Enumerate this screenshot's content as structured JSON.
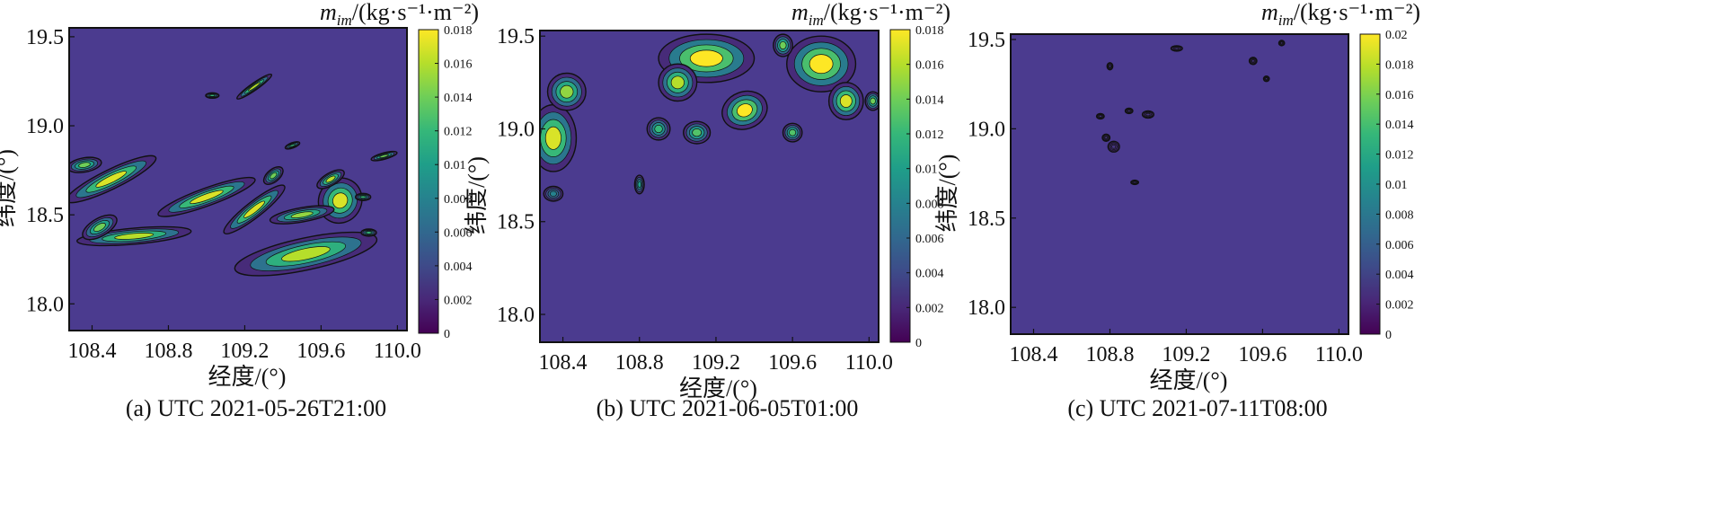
{
  "chart_data": [
    {
      "type": "heatmap",
      "caption": "(a) UTC 2021-05-26T21:00",
      "xlabel": "经度/(°)",
      "ylabel": "纬度/(°)",
      "xlim": [
        108.28,
        110.05
      ],
      "ylim": [
        17.85,
        19.55
      ],
      "xticks": [
        "108.4",
        "108.8",
        "109.2",
        "109.6",
        "110.0"
      ],
      "yticks": [
        "18.0",
        "18.5",
        "19.0",
        "19.5"
      ],
      "colorbar": {
        "title": "/(kg·s⁻¹·m⁻²)",
        "var": "m",
        "var_sub": "im",
        "range": [
          0,
          0.018
        ],
        "ticks": [
          "0",
          "0.002",
          "0.004",
          "0.006",
          "0.008",
          "0.01",
          "0.012",
          "0.014",
          "0.016",
          "0.018"
        ]
      },
      "features": [
        {
          "lon": 108.5,
          "lat": 18.7,
          "rx": 0.26,
          "ry": 0.055,
          "rot": -26,
          "peak": 0.017
        },
        {
          "lon": 108.36,
          "lat": 18.78,
          "rx": 0.09,
          "ry": 0.04,
          "rot": -10,
          "peak": 0.014
        },
        {
          "lon": 109.0,
          "lat": 18.6,
          "rx": 0.27,
          "ry": 0.05,
          "rot": -20,
          "peak": 0.017
        },
        {
          "lon": 108.62,
          "lat": 18.38,
          "rx": 0.3,
          "ry": 0.045,
          "rot": -5,
          "peak": 0.016
        },
        {
          "lon": 108.44,
          "lat": 18.43,
          "rx": 0.1,
          "ry": 0.05,
          "rot": -30,
          "peak": 0.014
        },
        {
          "lon": 109.25,
          "lat": 18.53,
          "rx": 0.2,
          "ry": 0.045,
          "rot": -38,
          "peak": 0.017
        },
        {
          "lon": 109.52,
          "lat": 18.28,
          "rx": 0.38,
          "ry": 0.09,
          "rot": -12,
          "peak": 0.016
        },
        {
          "lon": 109.7,
          "lat": 18.58,
          "rx": 0.12,
          "ry": 0.12,
          "rot": -60,
          "peak": 0.017
        },
        {
          "lon": 109.5,
          "lat": 18.5,
          "rx": 0.17,
          "ry": 0.04,
          "rot": -10,
          "peak": 0.015
        },
        {
          "lon": 109.65,
          "lat": 18.7,
          "rx": 0.08,
          "ry": 0.035,
          "rot": -30,
          "peak": 0.016
        },
        {
          "lon": 109.35,
          "lat": 18.72,
          "rx": 0.06,
          "ry": 0.035,
          "rot": -40,
          "peak": 0.014
        },
        {
          "lon": 109.25,
          "lat": 19.22,
          "rx": 0.11,
          "ry": 0.02,
          "rot": -35,
          "peak": 0.016
        },
        {
          "lon": 109.03,
          "lat": 19.17,
          "rx": 0.035,
          "ry": 0.015,
          "rot": 0,
          "peak": 0.012
        },
        {
          "lon": 109.93,
          "lat": 18.83,
          "rx": 0.07,
          "ry": 0.018,
          "rot": -15,
          "peak": 0.014
        },
        {
          "lon": 109.85,
          "lat": 18.4,
          "rx": 0.04,
          "ry": 0.02,
          "rot": 0,
          "peak": 0.012
        },
        {
          "lon": 109.45,
          "lat": 18.89,
          "rx": 0.04,
          "ry": 0.015,
          "rot": -20,
          "peak": 0.012
        },
        {
          "lon": 109.82,
          "lat": 18.6,
          "rx": 0.04,
          "ry": 0.02,
          "rot": 0,
          "peak": 0.012
        }
      ]
    },
    {
      "type": "heatmap",
      "caption": "(b) UTC 2021-06-05T01:00",
      "xlabel": "经度/(°)",
      "ylabel": "纬度/(°)",
      "xlim": [
        108.28,
        110.05
      ],
      "ylim": [
        17.85,
        19.53
      ],
      "xticks": [
        "108.4",
        "108.8",
        "109.2",
        "109.6",
        "110.0"
      ],
      "yticks": [
        "18.0",
        "18.5",
        "19.0",
        "19.5"
      ],
      "colorbar": {
        "title": "/(kg·s⁻¹·m⁻²)",
        "var": "m",
        "var_sub": "im",
        "range": [
          0,
          0.018
        ],
        "ticks": [
          "0",
          "0.002",
          "0.004",
          "0.006",
          "0.008",
          "0.01",
          "0.012",
          "0.014",
          "0.016",
          "0.018"
        ]
      },
      "features": [
        {
          "lon": 108.35,
          "lat": 18.95,
          "rx": 0.12,
          "ry": 0.18,
          "rot": 0,
          "peak": 0.017
        },
        {
          "lon": 108.42,
          "lat": 19.2,
          "rx": 0.1,
          "ry": 0.1,
          "rot": 0,
          "peak": 0.015
        },
        {
          "lon": 108.35,
          "lat": 18.65,
          "rx": 0.05,
          "ry": 0.04,
          "rot": 0,
          "peak": 0.008
        },
        {
          "lon": 109.15,
          "lat": 19.38,
          "rx": 0.25,
          "ry": 0.13,
          "rot": 0,
          "peak": 0.018
        },
        {
          "lon": 109.35,
          "lat": 19.1,
          "rx": 0.12,
          "ry": 0.1,
          "rot": -20,
          "peak": 0.018
        },
        {
          "lon": 109.0,
          "lat": 19.25,
          "rx": 0.1,
          "ry": 0.1,
          "rot": 0,
          "peak": 0.016
        },
        {
          "lon": 109.75,
          "lat": 19.35,
          "rx": 0.18,
          "ry": 0.15,
          "rot": 0,
          "peak": 0.018
        },
        {
          "lon": 109.88,
          "lat": 19.15,
          "rx": 0.09,
          "ry": 0.1,
          "rot": 0,
          "peak": 0.017
        },
        {
          "lon": 109.55,
          "lat": 19.45,
          "rx": 0.05,
          "ry": 0.06,
          "rot": 0,
          "peak": 0.014
        },
        {
          "lon": 110.02,
          "lat": 19.15,
          "rx": 0.04,
          "ry": 0.05,
          "rot": 0,
          "peak": 0.014
        },
        {
          "lon": 108.9,
          "lat": 19.0,
          "rx": 0.06,
          "ry": 0.06,
          "rot": 0,
          "peak": 0.012
        },
        {
          "lon": 109.1,
          "lat": 18.98,
          "rx": 0.07,
          "ry": 0.06,
          "rot": 0,
          "peak": 0.013
        },
        {
          "lon": 109.6,
          "lat": 18.98,
          "rx": 0.05,
          "ry": 0.05,
          "rot": 0,
          "peak": 0.013
        },
        {
          "lon": 108.8,
          "lat": 18.7,
          "rx": 0.025,
          "ry": 0.05,
          "rot": 0,
          "peak": 0.01
        }
      ]
    },
    {
      "type": "heatmap",
      "caption": "(c) UTC 2021-07-11T08:00",
      "xlabel": "经度/(°)",
      "ylabel": "纬度/(°)",
      "xlim": [
        108.28,
        110.05
      ],
      "ylim": [
        17.85,
        19.53
      ],
      "xticks": [
        "108.4",
        "108.8",
        "109.2",
        "109.6",
        "110.0"
      ],
      "yticks": [
        "18.0",
        "18.5",
        "19.0",
        "19.5"
      ],
      "colorbar": {
        "title": "/(kg·s⁻¹·m⁻²)",
        "var": "m",
        "var_sub": "im",
        "range": [
          0,
          0.02
        ],
        "ticks": [
          "0",
          "0.002",
          "0.004",
          "0.006",
          "0.008",
          "0.01",
          "0.012",
          "0.014",
          "0.016",
          "0.018",
          "0.02"
        ]
      },
      "features": [
        {
          "lon": 108.82,
          "lat": 18.9,
          "rx": 0.03,
          "ry": 0.03,
          "rot": 0,
          "peak": 0.003
        },
        {
          "lon": 108.78,
          "lat": 18.95,
          "rx": 0.02,
          "ry": 0.02,
          "rot": 0,
          "peak": 0.003
        },
        {
          "lon": 108.75,
          "lat": 19.07,
          "rx": 0.02,
          "ry": 0.015,
          "rot": 0,
          "peak": 0.003
        },
        {
          "lon": 108.9,
          "lat": 19.1,
          "rx": 0.02,
          "ry": 0.015,
          "rot": 0,
          "peak": 0.003
        },
        {
          "lon": 109.0,
          "lat": 19.08,
          "rx": 0.03,
          "ry": 0.02,
          "rot": 0,
          "peak": 0.003
        },
        {
          "lon": 108.8,
          "lat": 19.35,
          "rx": 0.015,
          "ry": 0.02,
          "rot": 0,
          "peak": 0.003
        },
        {
          "lon": 109.15,
          "lat": 19.45,
          "rx": 0.03,
          "ry": 0.015,
          "rot": 0,
          "peak": 0.003
        },
        {
          "lon": 109.55,
          "lat": 19.38,
          "rx": 0.02,
          "ry": 0.02,
          "rot": 0,
          "peak": 0.003
        },
        {
          "lon": 109.7,
          "lat": 19.48,
          "rx": 0.015,
          "ry": 0.015,
          "rot": 0,
          "peak": 0.003
        },
        {
          "lon": 108.93,
          "lat": 18.7,
          "rx": 0.02,
          "ry": 0.012,
          "rot": 0,
          "peak": 0.003
        },
        {
          "lon": 109.62,
          "lat": 19.28,
          "rx": 0.015,
          "ry": 0.015,
          "rot": 0,
          "peak": 0.003
        }
      ]
    }
  ]
}
